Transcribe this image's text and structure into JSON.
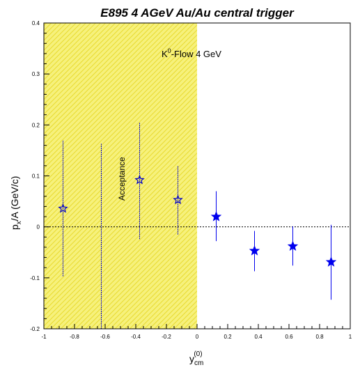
{
  "chart_data": {
    "type": "scatter",
    "title": "E895 4 AGeV  Au/Au central trigger",
    "xlabel": {
      "main": "y",
      "sub": "cm",
      "sup": "(0)"
    },
    "ylabel": {
      "p1": "p",
      "sub": "x",
      "p2": "/A (GeV/c)"
    },
    "xlim": [
      -1,
      1
    ],
    "ylim": [
      -0.2,
      0.4
    ],
    "xticks": [
      -1,
      -0.8,
      -0.6,
      -0.4,
      -0.2,
      0,
      0.2,
      0.4,
      0.6,
      0.8,
      1
    ],
    "xtick_labels": [
      "-1",
      "-0.8",
      "-0.6",
      "-0.4",
      "-0.2",
      "0",
      "0.2",
      "0.4",
      "0.6",
      "0.8",
      "1"
    ],
    "yticks": [
      -0.2,
      -0.1,
      0,
      0.1,
      0.2,
      0.3,
      0.4
    ],
    "ytick_labels": [
      "-0.2",
      "-0.1",
      "0",
      "0.1",
      "0.2",
      "0.3",
      "0.4"
    ],
    "acceptance_region": {
      "x_from": -1,
      "x_to": 0,
      "label": "Acceptance",
      "color": "#f2ea5e"
    },
    "annotation": {
      "main": "K",
      "sup": "0",
      "rest": "-Flow  4 GeV"
    },
    "reference_line_y": 0,
    "series": [
      {
        "marker": "open-star",
        "color": "#0000cc",
        "x": [
          -0.875,
          -0.375,
          -0.125
        ],
        "y": [
          0.036,
          0.092,
          0.053
        ],
        "y_low": [
          -0.097,
          -0.024,
          -0.015
        ],
        "y_high": [
          0.17,
          0.204,
          0.12
        ]
      },
      {
        "marker": "filled-star",
        "color": "#0000ee",
        "x": [
          0.125,
          0.375,
          0.625,
          0.875
        ],
        "y": [
          0.02,
          -0.047,
          -0.038,
          -0.069
        ],
        "y_low": [
          -0.028,
          -0.087,
          -0.076,
          -0.143
        ],
        "y_high": [
          0.07,
          -0.008,
          0.001,
          0.004
        ]
      }
    ],
    "extra_errorbars": [
      {
        "x": -0.625,
        "y_low": -0.2,
        "y_high": 0.163,
        "color": "#0000cc"
      }
    ],
    "grid": false
  }
}
